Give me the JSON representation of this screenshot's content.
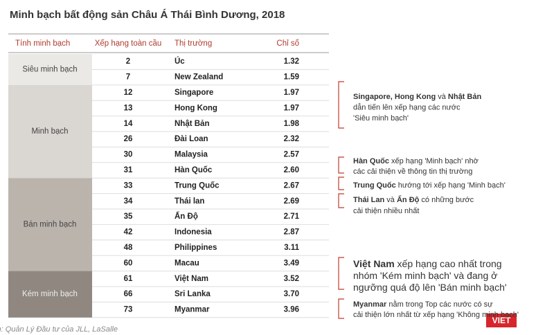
{
  "title": "Minh bạch bất động sản Châu Á Thái Bình Dương, 2018",
  "table": {
    "headers": [
      "Tính minh bạch",
      "Xếp hạng toàn cầu",
      "Thị trường",
      "Chỉ số"
    ],
    "groups": [
      {
        "label": "Siêu minh bạch",
        "rows": [
          [
            "2",
            "Úc",
            "1.32"
          ],
          [
            "7",
            "New Zealand",
            "1.59"
          ]
        ]
      },
      {
        "label": "Minh bạch",
        "rows": [
          [
            "12",
            "Singapore",
            "1.97"
          ],
          [
            "13",
            "Hong Kong",
            "1.97"
          ],
          [
            "14",
            "Nhật Bản",
            "1.98"
          ],
          [
            "26",
            "Đài Loan",
            "2.32"
          ],
          [
            "30",
            "Malaysia",
            "2.57"
          ],
          [
            "31",
            "Hàn Quốc",
            "2.60"
          ]
        ]
      },
      {
        "label": "Bán minh bạch",
        "rows": [
          [
            "33",
            "Trung Quốc",
            "2.67"
          ],
          [
            "34",
            "Thái lan",
            "2.69"
          ],
          [
            "35",
            "Ấn Độ",
            "2.71"
          ],
          [
            "42",
            "Indonesia",
            "2.87"
          ],
          [
            "48",
            "Philippines",
            "3.11"
          ],
          [
            "60",
            "Macau",
            "3.49"
          ]
        ]
      },
      {
        "label": "Kém minh bạch",
        "rows": [
          [
            "61",
            "Việt Nam",
            "3.52"
          ],
          [
            "66",
            "Sri Lanka",
            "3.70"
          ],
          [
            "73",
            "Myanmar",
            "3.96"
          ]
        ]
      }
    ]
  },
  "annotations": [
    {
      "lines": [
        [
          {
            "text": "Singapore, Hong Kong",
            "bold": true
          },
          {
            "text": " và ",
            "bold": false
          },
          {
            "text": "Nhật Bản",
            "bold": true
          }
        ],
        [
          {
            "text": "dẫn tiến lên xếp hạng các nước",
            "bold": false
          }
        ],
        [
          {
            "text": "'Siêu minh bạch'",
            "bold": false
          }
        ]
      ]
    },
    {
      "lines": [
        [
          {
            "text": "Hàn Quốc",
            "bold": true
          },
          {
            "text": " xếp hạng 'Minh bạch' nhờ",
            "bold": false
          }
        ],
        [
          {
            "text": "các cải thiện về thông tin thị trường",
            "bold": false
          }
        ]
      ]
    },
    {
      "lines": [
        [
          {
            "text": "Trung Quốc",
            "bold": true
          },
          {
            "text": " hướng tới xếp hạng 'Minh bạch'",
            "bold": false
          }
        ]
      ]
    },
    {
      "lines": [
        [
          {
            "text": "Thái Lan",
            "bold": true
          },
          {
            "text": " và ",
            "bold": false
          },
          {
            "text": "Ấn Độ",
            "bold": true
          },
          {
            "text": " có những bước",
            "bold": false
          }
        ],
        [
          {
            "text": "cải thiện nhiều nhất",
            "bold": false
          }
        ]
      ]
    },
    {
      "lines": [
        [
          {
            "text": "Việt Nam",
            "bold": true
          },
          {
            "text": " xếp hạng cao nhất trong",
            "bold": false
          }
        ],
        [
          {
            "text": "nhóm 'Kém minh bạch' và đang ở",
            "bold": false
          }
        ],
        [
          {
            "text": "ngưỡng quá độ lên 'Bán minh bạch'",
            "bold": false
          }
        ]
      ]
    },
    {
      "lines": [
        [
          {
            "text": "Myanmar",
            "bold": true
          },
          {
            "text": " nằm trong Top các nước có sự",
            "bold": false
          }
        ],
        [
          {
            "text": "cải thiện lớn nhất từ xếp hạng 'Không minh bạch'",
            "bold": false
          }
        ]
      ]
    }
  ],
  "source": "Nguồn: Quản Lý Đầu tư của JLL, LaSalle",
  "logo": "VIET"
}
